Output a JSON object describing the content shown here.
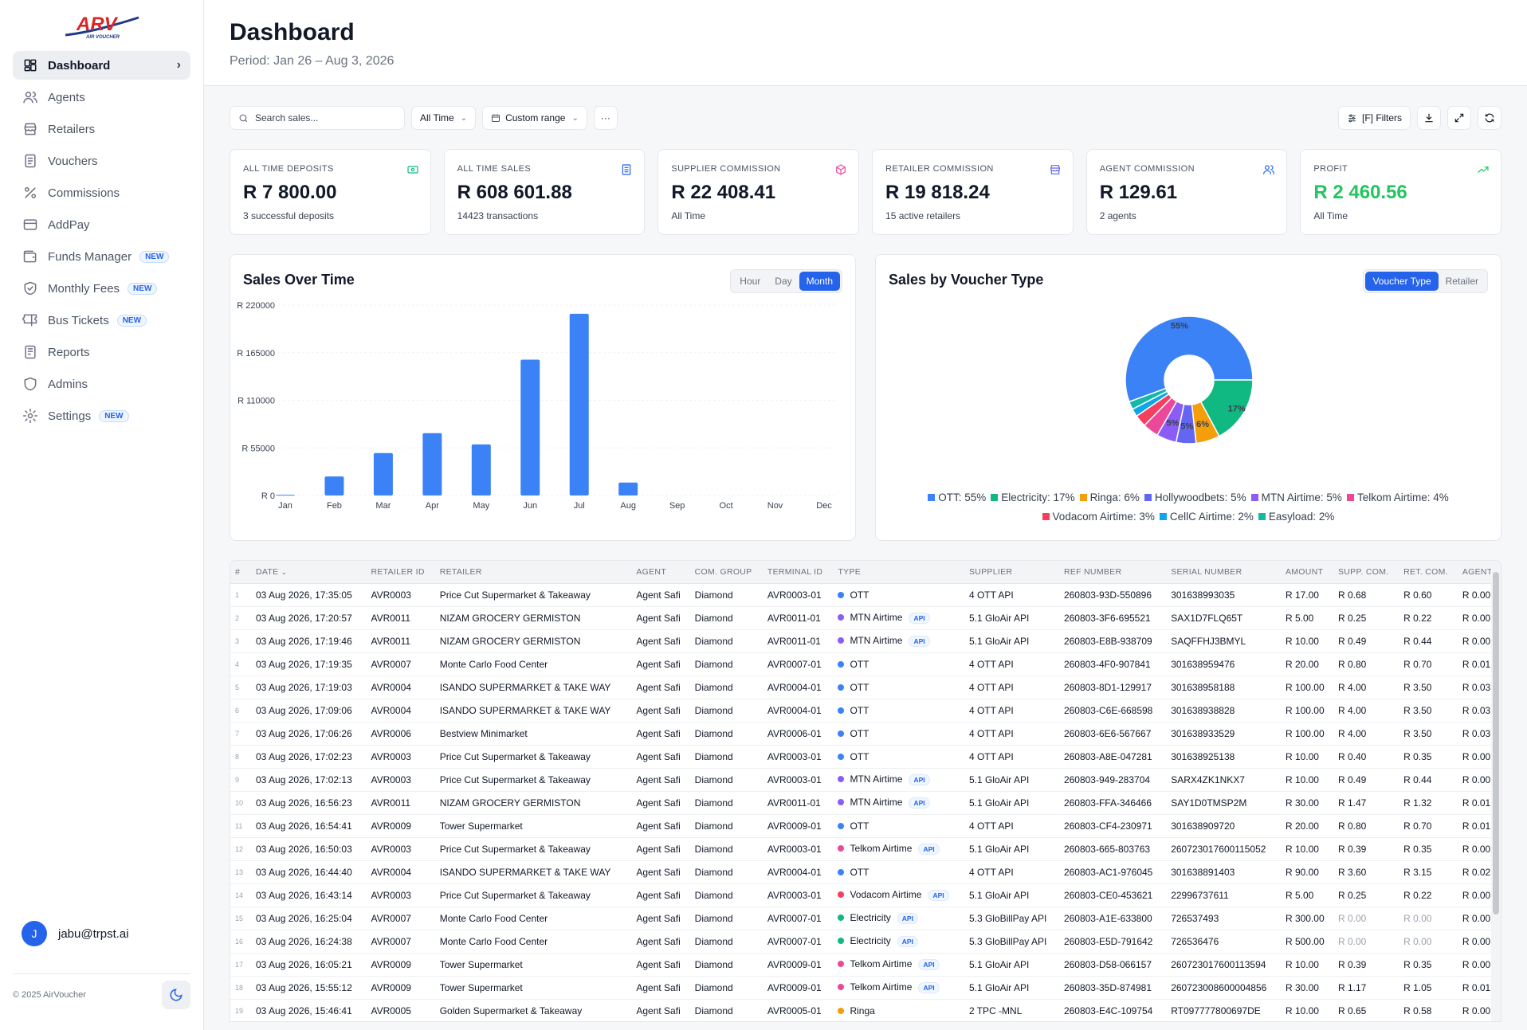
{
  "sidebar": {
    "logo_text": "ARV",
    "logo_sub": "AIR VOUCHER",
    "items": [
      {
        "label": "Dashboard",
        "icon": "dashboard-icon",
        "active": true
      },
      {
        "label": "Agents",
        "icon": "users-icon"
      },
      {
        "label": "Retailers",
        "icon": "store-icon"
      },
      {
        "label": "Vouchers",
        "icon": "document-icon"
      },
      {
        "label": "Commissions",
        "icon": "percent-icon"
      },
      {
        "label": "AddPay",
        "icon": "card-icon"
      },
      {
        "label": "Funds Manager",
        "icon": "wallet-icon",
        "badge": "NEW"
      },
      {
        "label": "Monthly Fees",
        "icon": "shield-check-icon",
        "badge": "NEW"
      },
      {
        "label": "Bus Tickets",
        "icon": "ticket-icon",
        "badge": "NEW"
      },
      {
        "label": "Reports",
        "icon": "report-icon"
      },
      {
        "label": "Admins",
        "icon": "shield-icon"
      },
      {
        "label": "Settings",
        "icon": "gear-icon",
        "badge": "NEW"
      }
    ],
    "user": {
      "initial": "J",
      "email": "jabu@trpst.ai"
    },
    "copyright": "© 2025 AirVoucher"
  },
  "header": {
    "title": "Dashboard",
    "period": "Period: Jan 26 – Aug 3, 2026"
  },
  "toolbar": {
    "search_placeholder": "Search sales...",
    "time_filter": "All Time",
    "range_filter": "Custom range",
    "more": "···",
    "filters_label": "[F] Filters"
  },
  "cards": [
    {
      "label": "ALL TIME DEPOSITS",
      "value": "R 7 800.00",
      "sub": "3 successful deposits",
      "icon": "money-icon",
      "color": "#10b981"
    },
    {
      "label": "ALL TIME SALES",
      "value": "R 608 601.88",
      "sub": "14423 transactions",
      "icon": "receipt-icon",
      "color": "#2563eb"
    },
    {
      "label": "SUPPLIER COMMISSION",
      "value": "R 22 408.41",
      "sub": "All Time",
      "icon": "box-icon",
      "color": "#ec4899"
    },
    {
      "label": "RETAILER COMMISSION",
      "value": "R 19 818.24",
      "sub": "15 active retailers",
      "icon": "store-icon",
      "color": "#6366f1"
    },
    {
      "label": "AGENT COMMISSION",
      "value": "R 129.61",
      "sub": "2 agents",
      "icon": "users-icon",
      "color": "#2563eb"
    },
    {
      "label": "PROFIT",
      "value": "R 2 460.56",
      "sub": "All Time",
      "icon": "trend-icon",
      "color": "#22c55e"
    }
  ],
  "sales_chart": {
    "title": "Sales Over Time",
    "buttons": [
      "Hour",
      "Day",
      "Month"
    ],
    "active": "Month"
  },
  "voucher_chart": {
    "title": "Sales by Voucher Type",
    "buttons": [
      "Voucher Type",
      "Retailer"
    ],
    "active": "Voucher Type"
  },
  "chart_data": [
    {
      "type": "bar",
      "title": "Sales Over Time",
      "categories": [
        "Jan",
        "Feb",
        "Mar",
        "Apr",
        "May",
        "Jun",
        "Jul",
        "Aug",
        "Sep",
        "Oct",
        "Nov",
        "Dec"
      ],
      "values": [
        800,
        22000,
        49000,
        72000,
        59000,
        157000,
        210000,
        15000,
        0,
        0,
        0,
        0
      ],
      "yticks": [
        "R 0",
        "R 55000",
        "R 110000",
        "R 165000",
        "R 220000"
      ],
      "ylim": [
        0,
        220000
      ],
      "color": "#3b82f6"
    },
    {
      "type": "pie",
      "title": "Sales by Voucher Type",
      "donut": true,
      "slices": [
        {
          "label": "OTT",
          "value": 55,
          "pct_label": "55%",
          "color": "#3b82f6"
        },
        {
          "label": "Electricity",
          "value": 17,
          "pct_label": "17%",
          "color": "#10b981"
        },
        {
          "label": "Ringa",
          "value": 6,
          "pct_label": "6%",
          "color": "#f59e0b"
        },
        {
          "label": "Hollywoodbets",
          "value": 5,
          "pct_label": "5%",
          "color": "#6366f1"
        },
        {
          "label": "MTN Airtime",
          "value": 5,
          "pct_label": "5%",
          "color": "#8b5cf6"
        },
        {
          "label": "Telkom Airtime",
          "value": 4,
          "pct_label": "",
          "color": "#ec4899"
        },
        {
          "label": "Vodacom Airtime",
          "value": 3,
          "pct_label": "",
          "color": "#f43f5e"
        },
        {
          "label": "CellC Airtime",
          "value": 2,
          "pct_label": "",
          "color": "#0ea5e9"
        },
        {
          "label": "Easyload",
          "value": 2,
          "pct_label": "",
          "color": "#14b8a6"
        }
      ],
      "legend": [
        "OTT: 55%",
        "Electricity: 17%",
        "Ringa: 6%",
        "Hollywoodbets: 5%",
        "MTN Airtime: 5%",
        "Telkom Airtime: 4%",
        "Vodacom Airtime: 3%",
        "CellC Airtime: 2%",
        "Easyload: 2%"
      ]
    }
  ],
  "table": {
    "columns": [
      "#",
      "DATE",
      "RETAILER ID",
      "RETAILER",
      "AGENT",
      "COM. GROUP",
      "TERMINAL ID",
      "TYPE",
      "SUPPLIER",
      "REF NUMBER",
      "SERIAL NUMBER",
      "AMOUNT",
      "SUPP. COM.",
      "RET. COM.",
      "AGENT"
    ],
    "sort_column": "DATE",
    "type_colors": {
      "OTT": "#3b82f6",
      "MTN Airtime": "#8b5cf6",
      "Telkom Airtime": "#ec4899",
      "Vodacom Airtime": "#f43f5e",
      "Electricity": "#10b981",
      "Ringa": "#f59e0b"
    },
    "rows": [
      [
        "1",
        "03 Aug 2026, 17:35:05",
        "AVR0003",
        "Price Cut Supermarket & Takeaway",
        "Agent Safi",
        "Diamond",
        "AVR0003-01",
        "OTT",
        "",
        "4 OTT API",
        "260803-93D-550896",
        "301638993035",
        "R 17.00",
        "R 0.68",
        "R 0.60",
        "R 0.00"
      ],
      [
        "2",
        "03 Aug 2026, 17:20:57",
        "AVR0011",
        "NIZAM GROCERY GERMISTON",
        "Agent Safi",
        "Diamond",
        "AVR0011-01",
        "MTN Airtime",
        "API",
        "5.1 GloAir API",
        "260803-3F6-695521",
        "SAX1D7FLQ65T",
        "R 5.00",
        "R 0.25",
        "R 0.22",
        "R 0.00"
      ],
      [
        "3",
        "03 Aug 2026, 17:19:46",
        "AVR0011",
        "NIZAM GROCERY GERMISTON",
        "Agent Safi",
        "Diamond",
        "AVR0011-01",
        "MTN Airtime",
        "API",
        "5.1 GloAir API",
        "260803-E8B-938709",
        "SAQFFHJ3BMYL",
        "R 10.00",
        "R 0.49",
        "R 0.44",
        "R 0.00"
      ],
      [
        "4",
        "03 Aug 2026, 17:19:35",
        "AVR0007",
        "Monte Carlo Food Center",
        "Agent Safi",
        "Diamond",
        "AVR0007-01",
        "OTT",
        "",
        "4 OTT API",
        "260803-4F0-907841",
        "301638959476",
        "R 20.00",
        "R 0.80",
        "R 0.70",
        "R 0.01"
      ],
      [
        "5",
        "03 Aug 2026, 17:19:03",
        "AVR0004",
        "ISANDO SUPERMARKET & TAKE WAY",
        "Agent Safi",
        "Diamond",
        "AVR0004-01",
        "OTT",
        "",
        "4 OTT API",
        "260803-8D1-129917",
        "301638958188",
        "R 100.00",
        "R 4.00",
        "R 3.50",
        "R 0.03"
      ],
      [
        "6",
        "03 Aug 2026, 17:09:06",
        "AVR0004",
        "ISANDO SUPERMARKET & TAKE WAY",
        "Agent Safi",
        "Diamond",
        "AVR0004-01",
        "OTT",
        "",
        "4 OTT API",
        "260803-C6E-668598",
        "301638938828",
        "R 100.00",
        "R 4.00",
        "R 3.50",
        "R 0.03"
      ],
      [
        "7",
        "03 Aug 2026, 17:06:26",
        "AVR0006",
        "Bestview Minimarket",
        "Agent Safi",
        "Diamond",
        "AVR0006-01",
        "OTT",
        "",
        "4 OTT API",
        "260803-6E6-567667",
        "301638933529",
        "R 100.00",
        "R 4.00",
        "R 3.50",
        "R 0.03"
      ],
      [
        "8",
        "03 Aug 2026, 17:02:23",
        "AVR0003",
        "Price Cut Supermarket & Takeaway",
        "Agent Safi",
        "Diamond",
        "AVR0003-01",
        "OTT",
        "",
        "4 OTT API",
        "260803-A8E-047281",
        "301638925138",
        "R 10.00",
        "R 0.40",
        "R 0.35",
        "R 0.00"
      ],
      [
        "9",
        "03 Aug 2026, 17:02:13",
        "AVR0003",
        "Price Cut Supermarket & Takeaway",
        "Agent Safi",
        "Diamond",
        "AVR0003-01",
        "MTN Airtime",
        "API",
        "5.1 GloAir API",
        "260803-949-283704",
        "SARX4ZK1NKX7",
        "R 10.00",
        "R 0.49",
        "R 0.44",
        "R 0.00"
      ],
      [
        "10",
        "03 Aug 2026, 16:56:23",
        "AVR0011",
        "NIZAM GROCERY GERMISTON",
        "Agent Safi",
        "Diamond",
        "AVR0011-01",
        "MTN Airtime",
        "API",
        "5.1 GloAir API",
        "260803-FFA-346466",
        "SAY1D0TMSP2M",
        "R 30.00",
        "R 1.47",
        "R 1.32",
        "R 0.01"
      ],
      [
        "11",
        "03 Aug 2026, 16:54:41",
        "AVR0009",
        "Tower Supermarket",
        "Agent Safi",
        "Diamond",
        "AVR0009-01",
        "OTT",
        "",
        "4 OTT API",
        "260803-CF4-230971",
        "301638909720",
        "R 20.00",
        "R 0.80",
        "R 0.70",
        "R 0.01"
      ],
      [
        "12",
        "03 Aug 2026, 16:50:03",
        "AVR0003",
        "Price Cut Supermarket & Takeaway",
        "Agent Safi",
        "Diamond",
        "AVR0003-01",
        "Telkom Airtime",
        "API",
        "5.1 GloAir API",
        "260803-665-803763",
        "260723017600115052",
        "R 10.00",
        "R 0.39",
        "R 0.35",
        "R 0.00"
      ],
      [
        "13",
        "03 Aug 2026, 16:44:40",
        "AVR0004",
        "ISANDO SUPERMARKET & TAKE WAY",
        "Agent Safi",
        "Diamond",
        "AVR0004-01",
        "OTT",
        "",
        "4 OTT API",
        "260803-AC1-976045",
        "301638891403",
        "R 90.00",
        "R 3.60",
        "R 3.15",
        "R 0.02"
      ],
      [
        "14",
        "03 Aug 2026, 16:43:14",
        "AVR0003",
        "Price Cut Supermarket & Takeaway",
        "Agent Safi",
        "Diamond",
        "AVR0003-01",
        "Vodacom Airtime",
        "API",
        "5.1 GloAir API",
        "260803-CE0-453621",
        "22996737611",
        "R 5.00",
        "R 0.25",
        "R 0.22",
        "R 0.00"
      ],
      [
        "15",
        "03 Aug 2026, 16:25:04",
        "AVR0007",
        "Monte Carlo Food Center",
        "Agent Safi",
        "Diamond",
        "AVR0007-01",
        "Electricity",
        "API",
        "5.3 GloBillPay API",
        "260803-A1E-633800",
        "726537493",
        "R 300.00",
        "R 0.00",
        "R 0.00",
        "R 0.00"
      ],
      [
        "16",
        "03 Aug 2026, 16:24:38",
        "AVR0007",
        "Monte Carlo Food Center",
        "Agent Safi",
        "Diamond",
        "AVR0007-01",
        "Electricity",
        "API",
        "5.3 GloBillPay API",
        "260803-E5D-791642",
        "726536476",
        "R 500.00",
        "R 0.00",
        "R 0.00",
        "R 0.00"
      ],
      [
        "17",
        "03 Aug 2026, 16:05:21",
        "AVR0009",
        "Tower Supermarket",
        "Agent Safi",
        "Diamond",
        "AVR0009-01",
        "Telkom Airtime",
        "API",
        "5.1 GloAir API",
        "260803-D58-066157",
        "260723017600113594",
        "R 10.00",
        "R 0.39",
        "R 0.35",
        "R 0.00"
      ],
      [
        "18",
        "03 Aug 2026, 15:55:12",
        "AVR0009",
        "Tower Supermarket",
        "Agent Safi",
        "Diamond",
        "AVR0009-01",
        "Telkom Airtime",
        "API",
        "5.1 GloAir API",
        "260803-35D-874981",
        "260723008600004856",
        "R 30.00",
        "R 1.17",
        "R 1.05",
        "R 0.01"
      ],
      [
        "19",
        "03 Aug 2026, 15:46:41",
        "AVR0005",
        "Golden Supermarket & Takeaway",
        "Agent Safi",
        "Diamond",
        "AVR0005-01",
        "Ringa",
        "",
        "2 TPC -MNL",
        "260803-E4C-109754",
        "RT097777800697DE",
        "R 10.00",
        "R 0.65",
        "R 0.58",
        "R 0.00"
      ]
    ]
  }
}
